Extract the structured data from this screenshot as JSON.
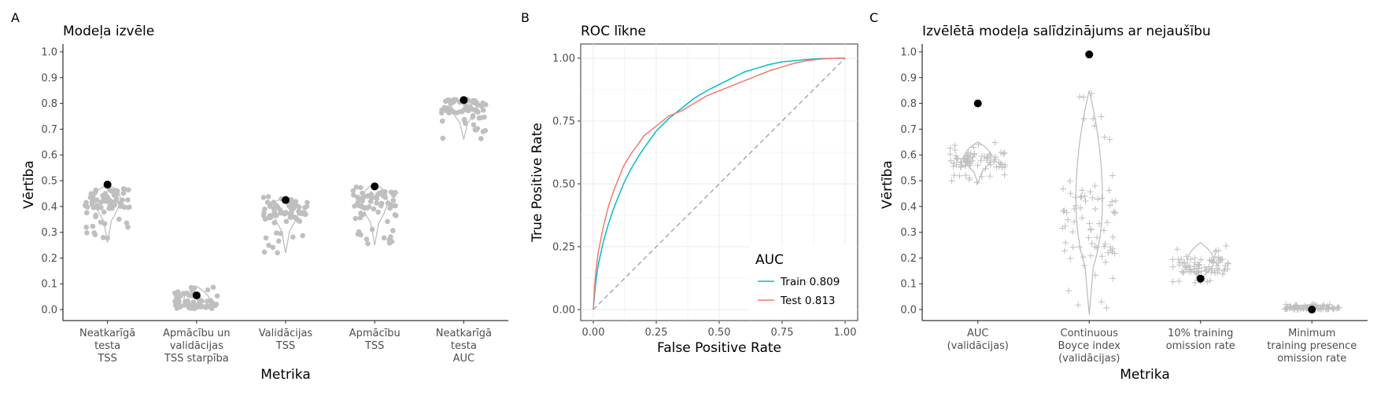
{
  "colors": {
    "point_grey": "#bfbfbf",
    "highlight": "#000000",
    "roc_train": "#00bfc4",
    "roc_test": "#f8766d",
    "diagonal": "#aaaaaa"
  },
  "chart_data": [
    {
      "panel": "A",
      "type": "scatter",
      "subtype": "violin-jitter",
      "title": "Modeļa izvēle",
      "xlabel": "Metrika",
      "ylabel": "Vērtība",
      "ylim": [
        0,
        1
      ],
      "yticks": [
        "0.0",
        "0.1",
        "0.2",
        "0.3",
        "0.4",
        "0.5",
        "0.6",
        "0.7",
        "0.8",
        "0.9",
        "1.0"
      ],
      "categories": [
        [
          "Neatkarīgā",
          "testa",
          "TSS"
        ],
        [
          "Apmācību un",
          "validācijas",
          "TSS starpība"
        ],
        [
          "Validācijas",
          "TSS"
        ],
        [
          "Apmācību",
          "TSS"
        ],
        [
          "Neatkarīgā",
          "testa",
          "AUC"
        ]
      ],
      "selected_values": [
        0.485,
        0.055,
        0.425,
        0.478,
        0.813
      ],
      "distribution_ranges": [
        [
          0.26,
          0.485
        ],
        [
          0.0,
          0.09
        ],
        [
          0.22,
          0.44
        ],
        [
          0.25,
          0.49
        ],
        [
          0.66,
          0.815
        ]
      ],
      "distribution_centers": [
        0.43,
        0.02,
        0.39,
        0.42,
        0.79
      ],
      "grid": false
    },
    {
      "panel": "B",
      "type": "line",
      "title": "ROC līkne",
      "xlabel": "False Positive Rate",
      "ylabel": "True Positive Rate",
      "xlim": [
        0,
        1
      ],
      "ylim": [
        0,
        1
      ],
      "xticks": [
        "0.00",
        "0.25",
        "0.50",
        "0.75",
        "1.00"
      ],
      "yticks": [
        "0.00",
        "0.25",
        "0.50",
        "0.75",
        "1.00"
      ],
      "legend_title": "AUC",
      "legend_position": "bottom-right",
      "grid": true,
      "series": [
        {
          "name": "Train 0.809",
          "x": [
            0,
            0.005,
            0.01,
            0.02,
            0.04,
            0.06,
            0.08,
            0.1,
            0.12,
            0.15,
            0.18,
            0.2,
            0.25,
            0.3,
            0.35,
            0.4,
            0.45,
            0.5,
            0.55,
            0.6,
            0.65,
            0.7,
            0.75,
            0.8,
            0.85,
            0.9,
            0.95,
            1.0
          ],
          "y": [
            0,
            0.06,
            0.11,
            0.18,
            0.27,
            0.34,
            0.4,
            0.45,
            0.5,
            0.56,
            0.61,
            0.64,
            0.71,
            0.76,
            0.8,
            0.84,
            0.87,
            0.895,
            0.92,
            0.945,
            0.96,
            0.975,
            0.985,
            0.99,
            0.995,
            0.998,
            0.999,
            1.0
          ]
        },
        {
          "name": "Test 0.813",
          "x": [
            0,
            0.005,
            0.01,
            0.02,
            0.04,
            0.06,
            0.08,
            0.1,
            0.12,
            0.15,
            0.18,
            0.2,
            0.25,
            0.3,
            0.35,
            0.4,
            0.45,
            0.5,
            0.55,
            0.6,
            0.65,
            0.7,
            0.75,
            0.8,
            0.85,
            0.9,
            0.95,
            1.0
          ],
          "y": [
            0,
            0.09,
            0.15,
            0.23,
            0.33,
            0.41,
            0.47,
            0.52,
            0.57,
            0.62,
            0.66,
            0.69,
            0.73,
            0.77,
            0.79,
            0.82,
            0.85,
            0.87,
            0.89,
            0.91,
            0.93,
            0.95,
            0.965,
            0.98,
            0.99,
            0.996,
            0.999,
            1.0
          ]
        }
      ],
      "reference_line": {
        "x": [
          0,
          1
        ],
        "y": [
          0,
          1
        ]
      }
    },
    {
      "panel": "C",
      "type": "scatter",
      "subtype": "violin-jitter",
      "title": "Izvēlētā modeļa salīdzinājums ar nejaušību",
      "xlabel": "Metrika",
      "ylabel": "Vērtība",
      "ylim": [
        0,
        1
      ],
      "yticks": [
        "0.0",
        "0.1",
        "0.2",
        "0.3",
        "0.4",
        "0.5",
        "0.6",
        "0.7",
        "0.8",
        "0.9",
        "1.0"
      ],
      "categories": [
        [
          "AUC",
          "(validācijas)"
        ],
        [
          "Continuous",
          "Boyce index",
          "(validācijas)"
        ],
        [
          "10% training",
          "omission rate"
        ],
        [
          "Minimum",
          "training presence",
          "omission rate"
        ]
      ],
      "selected_values": [
        0.8,
        0.99,
        0.12,
        0.0
      ],
      "distribution_ranges": [
        [
          0.49,
          0.65
        ],
        [
          -0.02,
          0.85
        ],
        [
          0.1,
          0.26
        ],
        [
          0.0,
          0.02
        ]
      ],
      "distribution_centers": [
        0.58,
        0.35,
        0.17,
        0.005
      ],
      "grid": false
    }
  ]
}
